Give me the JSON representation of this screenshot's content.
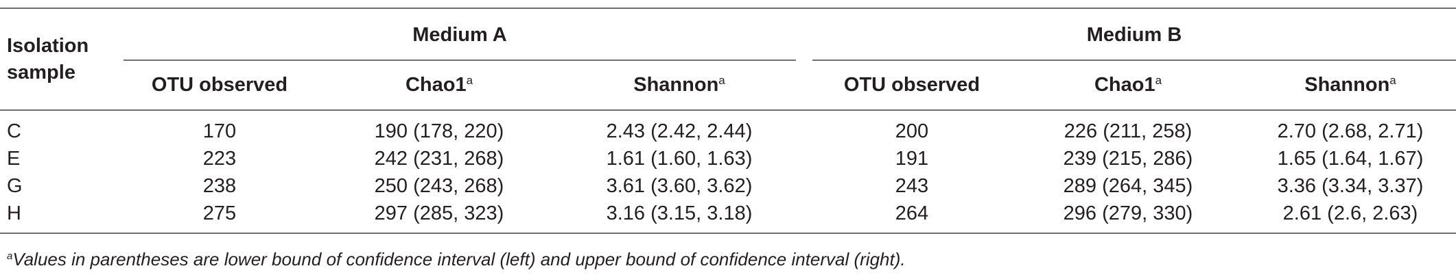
{
  "table": {
    "row_header_line1": "Isolation",
    "row_header_line2": "sample",
    "groups": [
      "Medium A",
      "Medium B"
    ],
    "subcolumns": [
      {
        "label": "OTU observed",
        "sup": ""
      },
      {
        "label": "Chao1",
        "sup": "a"
      },
      {
        "label": "Shannon",
        "sup": "a"
      },
      {
        "label": "OTU observed",
        "sup": ""
      },
      {
        "label": "Chao1",
        "sup": "a"
      },
      {
        "label": "Shannon",
        "sup": "a"
      }
    ],
    "rows": [
      {
        "sample": "C",
        "cells": [
          "170",
          "190 (178, 220)",
          "2.43 (2.42, 2.44)",
          "200",
          "226 (211, 258)",
          "2.70 (2.68, 2.71)"
        ]
      },
      {
        "sample": "E",
        "cells": [
          "223",
          "242 (231, 268)",
          "1.61 (1.60, 1.63)",
          "191",
          "239 (215, 286)",
          "1.65 (1.64, 1.67)"
        ]
      },
      {
        "sample": "G",
        "cells": [
          "238",
          "250 (243, 268)",
          "3.61 (3.60, 3.62)",
          "243",
          "289 (264, 345)",
          "3.36 (3.34, 3.37)"
        ]
      },
      {
        "sample": "H",
        "cells": [
          "275",
          "297 (285, 323)",
          "3.16 (3.15, 3.18)",
          "264",
          "296 (279, 330)",
          "2.61 (2.6, 2.63)"
        ]
      }
    ]
  },
  "footnote": {
    "sup": "a",
    "text": "Values in parentheses are lower bound of confidence interval (left) and upper bound of confidence interval (right)."
  }
}
